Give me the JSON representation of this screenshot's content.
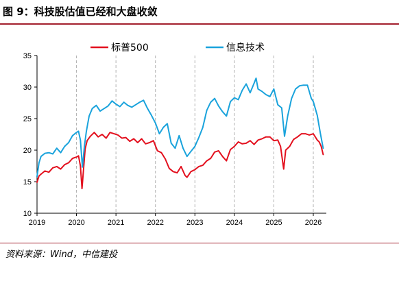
{
  "header": {
    "title": "图 9：科技股估值已经和大盘收敛"
  },
  "footer": {
    "source": "资料来源：Wind，中信建投"
  },
  "colors": {
    "accent_rule": "#a31f2e",
    "sp500": "#e3101e",
    "infotech": "#1aa3dc",
    "grid": "#b0b0b0"
  },
  "chart_data": {
    "type": "line",
    "title": "",
    "xlabel": "",
    "ylabel": "",
    "ylim": [
      10,
      35
    ],
    "yticks": [
      "10",
      "15",
      "20",
      "25",
      "30",
      "35"
    ],
    "xlim": [
      2019.0,
      2026.33
    ],
    "xticks": [
      "2019",
      "2020",
      "2021",
      "2022",
      "2023",
      "2024",
      "2025",
      "2026"
    ],
    "year_gridlines": true,
    "legend_position": "top",
    "series": [
      {
        "name": "标普500",
        "color": "#e3101e",
        "x": [
          2019.0,
          2019.05,
          2019.1,
          2019.2,
          2019.3,
          2019.4,
          2019.5,
          2019.6,
          2019.7,
          2019.8,
          2019.9,
          2020.0,
          2020.05,
          2020.1,
          2020.14,
          2020.18,
          2020.22,
          2020.27,
          2020.35,
          2020.45,
          2020.55,
          2020.65,
          2020.75,
          2020.85,
          2020.95,
          2021.05,
          2021.15,
          2021.25,
          2021.35,
          2021.45,
          2021.55,
          2021.65,
          2021.75,
          2021.85,
          2021.95,
          2022.05,
          2022.15,
          2022.25,
          2022.35,
          2022.45,
          2022.55,
          2022.65,
          2022.75,
          2022.8,
          2022.9,
          2023.0,
          2023.1,
          2023.2,
          2023.3,
          2023.4,
          2023.5,
          2023.6,
          2023.7,
          2023.8,
          2023.9,
          2024.0,
          2024.1,
          2024.2,
          2024.3,
          2024.4,
          2024.5,
          2024.6,
          2024.7,
          2024.8,
          2024.9,
          2025.0,
          2025.1,
          2025.17,
          2025.25,
          2025.3,
          2025.4,
          2025.5,
          2025.6,
          2025.7,
          2025.8,
          2025.9,
          2026.0,
          2026.1,
          2026.15,
          2026.2,
          2026.25
        ],
        "values": [
          14.9,
          15.9,
          16.2,
          16.7,
          16.5,
          17.2,
          17.4,
          17.0,
          17.7,
          18.0,
          18.7,
          18.9,
          19.1,
          17.5,
          13.9,
          17.0,
          20.2,
          21.5,
          22.2,
          22.8,
          22.1,
          22.5,
          21.9,
          22.8,
          22.6,
          22.4,
          21.9,
          22.0,
          21.4,
          21.8,
          21.2,
          21.8,
          21.0,
          21.2,
          21.5,
          19.9,
          19.6,
          18.6,
          17.1,
          16.6,
          16.4,
          17.4,
          16.0,
          15.7,
          16.6,
          16.9,
          17.4,
          17.6,
          18.3,
          18.7,
          19.7,
          19.9,
          19.0,
          18.3,
          20.1,
          20.6,
          21.3,
          21.0,
          21.1,
          21.5,
          20.9,
          21.6,
          21.8,
          22.1,
          22.1,
          21.5,
          21.6,
          20.6,
          17.0,
          20.0,
          20.6,
          21.7,
          22.1,
          22.6,
          22.6,
          22.4,
          22.6,
          21.6,
          21.3,
          20.6,
          19.3
        ]
      },
      {
        "name": "信息技术",
        "color": "#1aa3dc",
        "x": [
          2019.0,
          2019.05,
          2019.1,
          2019.2,
          2019.3,
          2019.4,
          2019.5,
          2019.6,
          2019.7,
          2019.8,
          2019.9,
          2020.0,
          2020.05,
          2020.1,
          2020.15,
          2020.2,
          2020.25,
          2020.32,
          2020.4,
          2020.5,
          2020.6,
          2020.7,
          2020.8,
          2020.9,
          2021.0,
          2021.1,
          2021.2,
          2021.3,
          2021.4,
          2021.5,
          2021.6,
          2021.7,
          2021.8,
          2021.9,
          2022.0,
          2022.1,
          2022.2,
          2022.3,
          2022.4,
          2022.5,
          2022.6,
          2022.7,
          2022.8,
          2022.9,
          2023.0,
          2023.1,
          2023.2,
          2023.3,
          2023.4,
          2023.5,
          2023.6,
          2023.7,
          2023.8,
          2023.9,
          2024.0,
          2024.1,
          2024.2,
          2024.3,
          2024.4,
          2024.5,
          2024.55,
          2024.6,
          2024.7,
          2024.8,
          2024.9,
          2025.0,
          2025.1,
          2025.2,
          2025.27,
          2025.35,
          2025.45,
          2025.55,
          2025.65,
          2025.75,
          2025.85,
          2025.95,
          2026.0,
          2026.1,
          2026.18,
          2026.25
        ],
        "values": [
          15.8,
          18.0,
          19.0,
          19.5,
          19.6,
          19.4,
          20.3,
          19.6,
          20.6,
          21.2,
          22.3,
          22.8,
          23.0,
          21.6,
          17.3,
          20.6,
          23.0,
          25.4,
          26.6,
          27.1,
          26.2,
          26.6,
          27.0,
          27.8,
          27.3,
          26.9,
          27.6,
          27.1,
          26.8,
          27.2,
          27.6,
          27.9,
          26.6,
          25.5,
          24.3,
          22.6,
          23.6,
          24.2,
          21.1,
          20.3,
          22.3,
          20.3,
          19.0,
          19.8,
          20.6,
          22.0,
          23.6,
          26.3,
          27.6,
          28.2,
          27.0,
          26.1,
          25.4,
          27.7,
          28.3,
          28.0,
          29.5,
          30.5,
          29.1,
          30.6,
          31.4,
          29.7,
          29.3,
          28.8,
          28.5,
          29.7,
          27.2,
          26.7,
          22.2,
          25.4,
          28.2,
          29.7,
          30.2,
          30.3,
          30.3,
          28.2,
          27.7,
          25.5,
          22.6,
          20.3
        ]
      }
    ]
  }
}
